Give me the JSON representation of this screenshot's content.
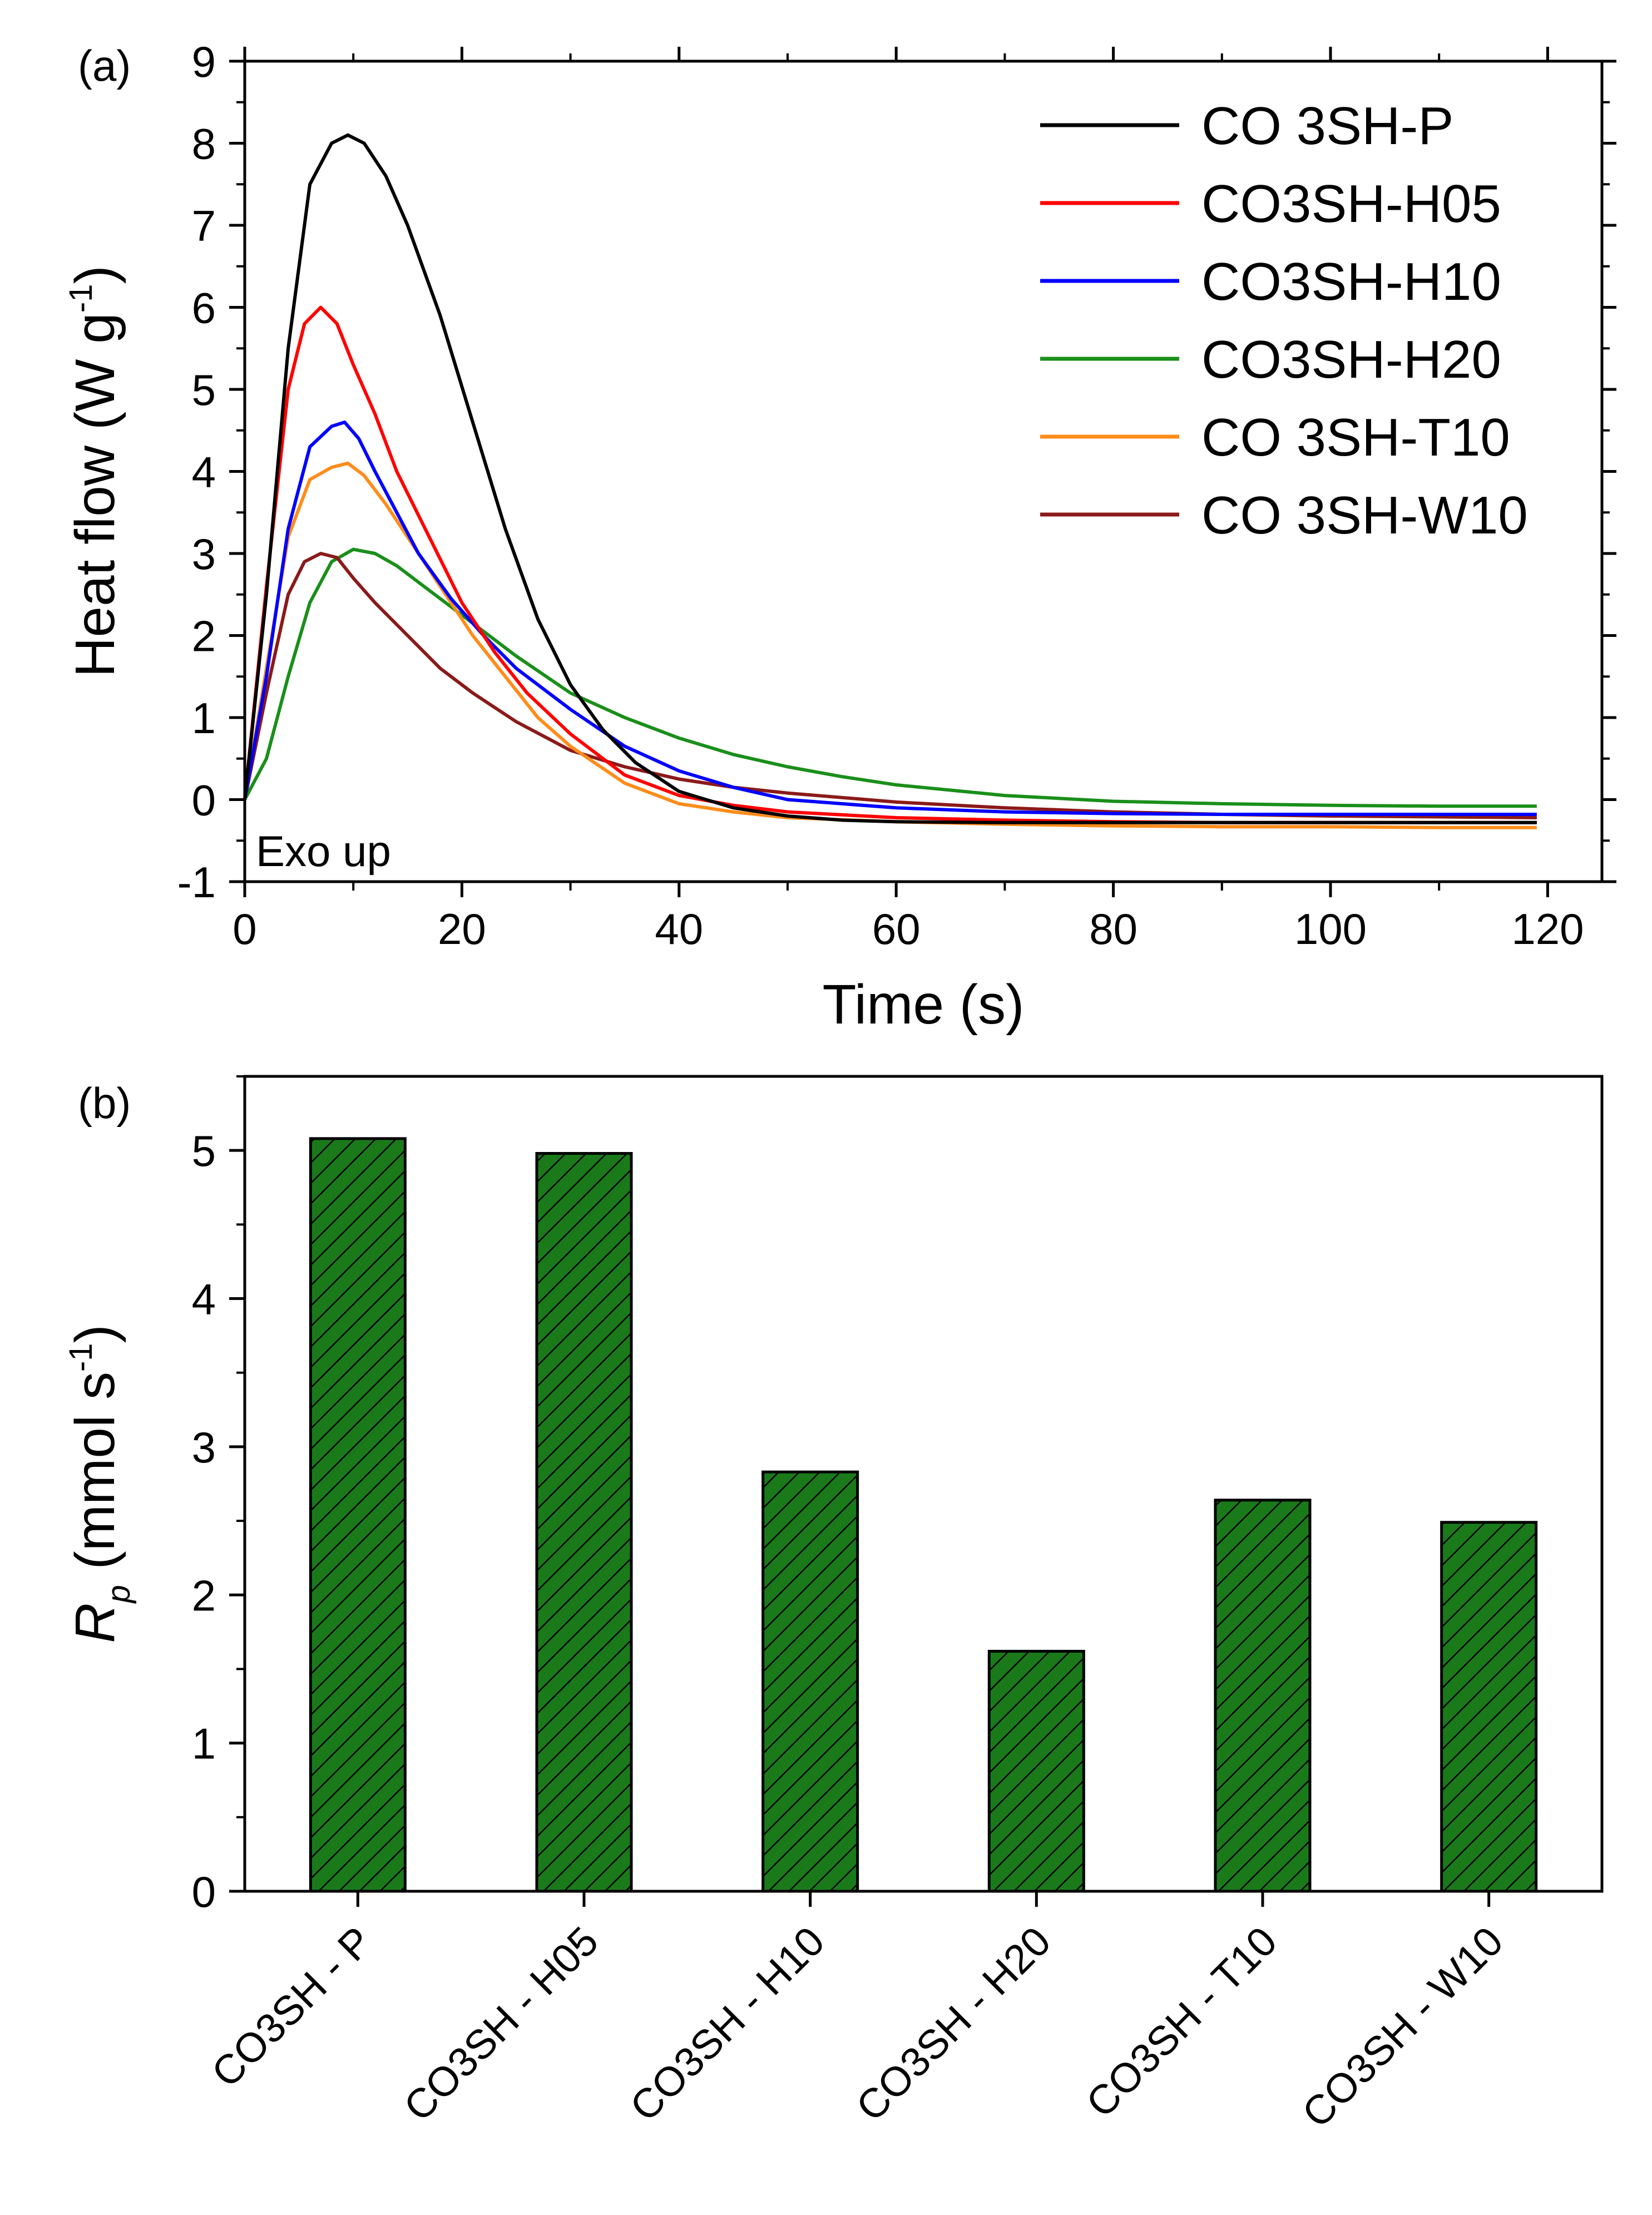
{
  "chart_data": [
    {
      "panel": "(a)",
      "type": "line",
      "xlabel": "Time (s)",
      "ylabel_main": "Heat flow (W g",
      "ylabel_sup": "-1",
      "ylabel_close": ")",
      "xlim": [
        0,
        125
      ],
      "ylim": [
        -1,
        9
      ],
      "xticks": [
        0,
        20,
        40,
        60,
        80,
        100,
        120
      ],
      "yticks": [
        -1,
        0,
        1,
        2,
        3,
        4,
        5,
        6,
        7,
        8,
        9
      ],
      "annotation": "Exo up",
      "legend_position": "top-right",
      "series": [
        {
          "name": "CO 3SH-P",
          "color": "#000000",
          "x": [
            0,
            2,
            4,
            6,
            8,
            9.5,
            11,
            13,
            15,
            18,
            21,
            24,
            27,
            30,
            33,
            36,
            40,
            45,
            50,
            55,
            60,
            70,
            80,
            90,
            100,
            110,
            119
          ],
          "y": [
            0,
            2.5,
            5.5,
            7.5,
            8.0,
            8.1,
            8.0,
            7.6,
            7.0,
            5.9,
            4.6,
            3.3,
            2.2,
            1.4,
            0.85,
            0.45,
            0.1,
            -0.1,
            -0.2,
            -0.25,
            -0.27,
            -0.28,
            -0.28,
            -0.28,
            -0.28,
            -0.28,
            -0.28
          ]
        },
        {
          "name": "CO3SH-H05",
          "color": "#ff0000",
          "x": [
            0,
            2,
            4,
            5.5,
            7,
            8.5,
            10,
            12,
            14,
            17,
            20,
            23,
            26,
            30,
            35,
            40,
            45,
            50,
            60,
            70,
            80,
            90,
            100,
            110,
            119
          ],
          "y": [
            0,
            2.6,
            5.0,
            5.8,
            6.0,
            5.8,
            5.3,
            4.7,
            4.0,
            3.2,
            2.4,
            1.8,
            1.3,
            0.8,
            0.3,
            0.05,
            -0.07,
            -0.15,
            -0.22,
            -0.25,
            -0.27,
            -0.28,
            -0.28,
            -0.28,
            -0.28
          ]
        },
        {
          "name": "CO3SH-H10",
          "color": "#0000ff",
          "x": [
            0,
            2,
            4,
            6,
            8,
            9.2,
            10.5,
            12,
            14,
            16,
            19,
            22,
            25,
            30,
            35,
            40,
            45,
            50,
            60,
            70,
            80,
            90,
            100,
            110,
            119
          ],
          "y": [
            0,
            1.5,
            3.3,
            4.3,
            4.55,
            4.6,
            4.4,
            4.0,
            3.5,
            3.0,
            2.45,
            2.0,
            1.6,
            1.1,
            0.65,
            0.35,
            0.15,
            0.0,
            -0.1,
            -0.15,
            -0.17,
            -0.18,
            -0.18,
            -0.18,
            -0.18
          ]
        },
        {
          "name": "CO3SH-H20",
          "color": "#1a8f1a",
          "x": [
            0,
            2,
            4,
            6,
            8,
            10,
            12,
            14,
            17,
            20,
            25,
            30,
            35,
            40,
            45,
            50,
            55,
            60,
            70,
            80,
            90,
            100,
            110,
            119
          ],
          "y": [
            0,
            0.5,
            1.5,
            2.4,
            2.9,
            3.05,
            3.0,
            2.85,
            2.55,
            2.25,
            1.75,
            1.3,
            1.0,
            0.75,
            0.55,
            0.4,
            0.28,
            0.18,
            0.05,
            -0.02,
            -0.05,
            -0.07,
            -0.08,
            -0.08
          ]
        },
        {
          "name": "CO 3SH-T10",
          "color": "#ff8c1a",
          "x": [
            0,
            2,
            4,
            6,
            8,
            9.5,
            11,
            13,
            15,
            18,
            21,
            24,
            27,
            30,
            35,
            40,
            45,
            50,
            60,
            70,
            80,
            90,
            100,
            110,
            119
          ],
          "y": [
            0,
            1.6,
            3.2,
            3.9,
            4.05,
            4.1,
            3.95,
            3.6,
            3.2,
            2.6,
            2.0,
            1.5,
            1.0,
            0.65,
            0.2,
            -0.05,
            -0.15,
            -0.22,
            -0.27,
            -0.3,
            -0.32,
            -0.33,
            -0.33,
            -0.34,
            -0.34
          ]
        },
        {
          "name": "CO 3SH-W10",
          "color": "#8b1a1a",
          "x": [
            0,
            2,
            4,
            5.5,
            7,
            8.5,
            10,
            12,
            15,
            18,
            21,
            25,
            30,
            35,
            40,
            45,
            50,
            60,
            70,
            80,
            90,
            100,
            110,
            119
          ],
          "y": [
            0,
            1.3,
            2.5,
            2.9,
            3.0,
            2.95,
            2.7,
            2.4,
            2.0,
            1.6,
            1.3,
            0.95,
            0.6,
            0.4,
            0.25,
            0.15,
            0.08,
            -0.03,
            -0.1,
            -0.15,
            -0.18,
            -0.2,
            -0.21,
            -0.22
          ]
        }
      ]
    },
    {
      "panel": "(b)",
      "type": "bar",
      "ylabel_main": "R",
      "ylabel_sub": "p",
      "ylabel_rest": " (mmol s",
      "ylabel_sup": "-1",
      "ylabel_close": ")",
      "ylim": [
        0,
        5.5
      ],
      "yticks": [
        0,
        1,
        2,
        3,
        4,
        5
      ],
      "bar_color": "#1a7a1a",
      "categories": [
        "CO3SH - P",
        "CO3SH - H05",
        "CO3SH - H10",
        "CO3SH - H20",
        "CO3SH - T10",
        "CO3SH - W10"
      ],
      "values": [
        5.08,
        4.98,
        2.83,
        1.62,
        2.64,
        2.49
      ]
    }
  ]
}
